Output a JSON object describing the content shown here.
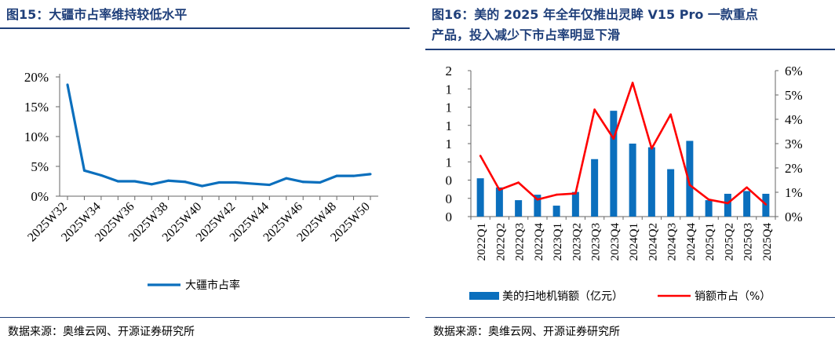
{
  "left": {
    "title": "图15：大疆市占率维持较低水平",
    "source": "数据来源：奥维云网、开源证券研究所",
    "chart_data": {
      "type": "line",
      "title": "图15：大疆市占率维持较低水平",
      "x": [
        "2025W32",
        "2025W33",
        "2025W34",
        "2025W35",
        "2025W36",
        "2025W37",
        "2025W38",
        "2025W39",
        "2025W40",
        "2025W41",
        "2025W42",
        "2025W43",
        "2025W44",
        "2025W45",
        "2025W46",
        "2025W47",
        "2025W48",
        "2025W49",
        "2025W50"
      ],
      "x_tick_labels": [
        "2025W32",
        "2025W34",
        "2025W36",
        "2025W38",
        "2025W40",
        "2025W42",
        "2025W44",
        "2025W46",
        "2025W48",
        "2025W50"
      ],
      "series": [
        {
          "name": "大疆市占率",
          "color": "#0b6fbd",
          "values": [
            18.7,
            4.3,
            3.5,
            2.5,
            2.5,
            2.0,
            2.6,
            2.4,
            1.7,
            2.3,
            2.3,
            2.1,
            1.9,
            3.0,
            2.4,
            2.3,
            3.4,
            3.4,
            3.7
          ]
        }
      ],
      "ylim": [
        0,
        20
      ],
      "y_ticks": [
        {
          "v": 0,
          "label": "0%"
        },
        {
          "v": 5,
          "label": "5%"
        },
        {
          "v": 10,
          "label": "10%"
        },
        {
          "v": 15,
          "label": "15%"
        },
        {
          "v": 20,
          "label": "20%"
        }
      ],
      "xlabel": "",
      "ylabel": "",
      "legend": "bottom"
    }
  },
  "right": {
    "title_line1": "图16：美的 2025 年全年仅推出灵眸 V15 Pro 一款重点",
    "title_line2": "产品，投入减少下市占率明显下滑",
    "source": "数据来源：奥维云网、开源证券研究所",
    "chart_data": {
      "type": "bar",
      "title": "图16：美的 2025 年全年仅推出灵眸 V15 Pro 一款重点产品，投入减少下市占率明显下滑",
      "categories": [
        "2022Q1",
        "2022Q2",
        "2022Q3",
        "2022Q4",
        "2023Q1",
        "2023Q2",
        "2023Q3",
        "2023Q4",
        "2024Q1",
        "2024Q2",
        "2024Q3",
        "2024Q4",
        "2025Q1",
        "2025Q2",
        "2025Q3",
        "2025Q4"
      ],
      "series": [
        {
          "name": "美的扫地机销额（亿元）",
          "type": "bar",
          "axis": "left",
          "color": "#0b6fbd",
          "values": [
            0.42,
            0.32,
            0.18,
            0.24,
            0.12,
            0.27,
            0.63,
            1.16,
            0.8,
            0.76,
            0.52,
            0.83,
            0.18,
            0.25,
            0.28,
            0.25
          ]
        },
        {
          "name": "销额市占（%）",
          "type": "line",
          "axis": "right",
          "color": "#ff0000",
          "values": [
            2.5,
            1.1,
            1.4,
            0.7,
            0.9,
            0.95,
            4.4,
            3.2,
            5.5,
            2.8,
            4.2,
            1.3,
            0.7,
            0.55,
            1.2,
            0.5
          ]
        }
      ],
      "y_left_ticks": [
        {
          "v": 0,
          "label": "0"
        },
        {
          "v": 0.2,
          "label": "0"
        },
        {
          "v": 0.4,
          "label": "0"
        },
        {
          "v": 0.6,
          "label": "1"
        },
        {
          "v": 0.8,
          "label": "1"
        },
        {
          "v": 1.0,
          "label": "1"
        },
        {
          "v": 1.2,
          "label": "1"
        },
        {
          "v": 1.4,
          "label": "1"
        },
        {
          "v": 1.6,
          "label": "2"
        }
      ],
      "ylim_left": [
        0,
        1.6
      ],
      "y_right_ticks": [
        {
          "v": 0,
          "label": "0%"
        },
        {
          "v": 1,
          "label": "1%"
        },
        {
          "v": 2,
          "label": "2%"
        },
        {
          "v": 3,
          "label": "3%"
        },
        {
          "v": 4,
          "label": "4%"
        },
        {
          "v": 5,
          "label": "5%"
        },
        {
          "v": 6,
          "label": "6%"
        }
      ],
      "ylim_right": [
        0,
        6
      ],
      "legend": "bottom"
    }
  }
}
